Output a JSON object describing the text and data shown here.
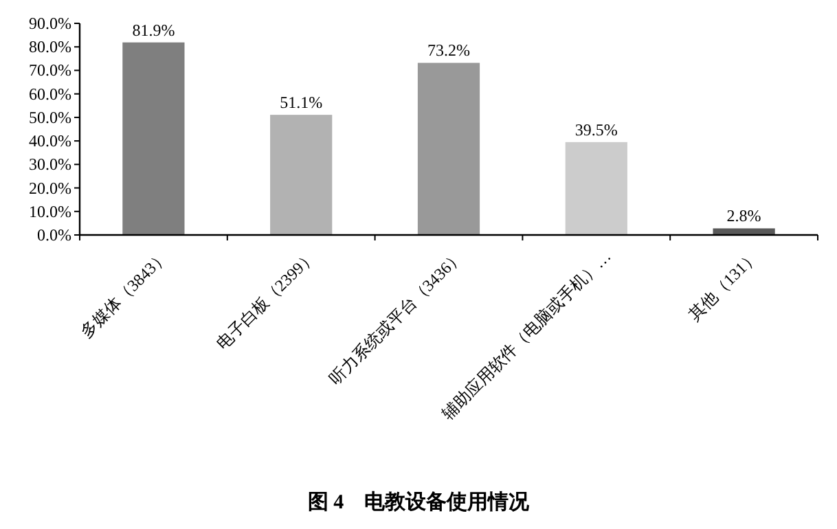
{
  "chart_data": {
    "type": "bar",
    "title": "图 4　电教设备使用情况",
    "categories": [
      "多媒体（3843）",
      "电子白板（2399）",
      "听力系统或平台（3436）",
      "辅助应用软件（电脑或手机）…",
      "其他（131）"
    ],
    "values": [
      81.9,
      51.1,
      73.2,
      39.5,
      2.8
    ],
    "colors": [
      "#7f7f7f",
      "#b2b2b2",
      "#999999",
      "#cccccc",
      "#595959"
    ],
    "value_labels": [
      "81.9%",
      "51.1%",
      "73.2%",
      "39.5%",
      "2.8%"
    ],
    "ylim": [
      0,
      90
    ],
    "yticks": [
      {
        "value": 0,
        "label": "0.0%"
      },
      {
        "value": 10,
        "label": "10.0%"
      },
      {
        "value": 20,
        "label": "20.0%"
      },
      {
        "value": 30,
        "label": "30.0%"
      },
      {
        "value": 40,
        "label": "40.0%"
      },
      {
        "value": 50,
        "label": "50.0%"
      },
      {
        "value": 60,
        "label": "60.0%"
      },
      {
        "value": 70,
        "label": "70.0%"
      },
      {
        "value": 80,
        "label": "80.0%"
      },
      {
        "value": 90,
        "label": "90.0%"
      }
    ],
    "grid": false
  }
}
